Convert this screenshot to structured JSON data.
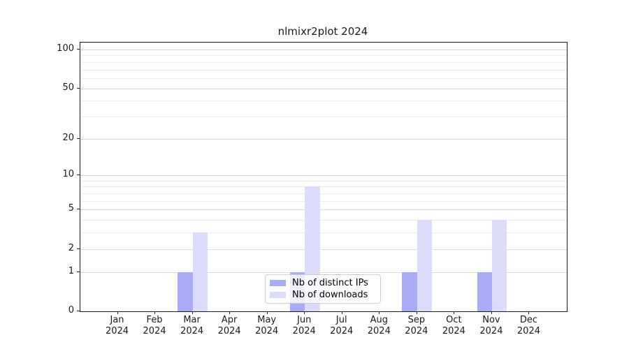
{
  "chart_data": {
    "type": "bar",
    "title": "nlmixr2plot 2024",
    "categories": [
      "Jan",
      "Feb",
      "Mar",
      "Apr",
      "May",
      "Jun",
      "Jul",
      "Aug",
      "Sep",
      "Oct",
      "Nov",
      "Dec"
    ],
    "year_label": "2024",
    "series": [
      {
        "name": "Nb of distinct IPs",
        "color": "#a8abf6",
        "values": [
          0,
          0,
          1,
          0,
          0,
          1,
          0,
          0,
          1,
          0,
          1,
          0
        ]
      },
      {
        "name": "Nb of downloads",
        "color": "#dadcfa",
        "values": [
          0,
          0,
          3,
          0,
          0,
          8,
          0,
          0,
          4,
          0,
          4,
          0
        ]
      }
    ],
    "yscale": "log1p",
    "ylim": [
      0,
      113
    ],
    "yticks": [
      0,
      1,
      2,
      5,
      10,
      20,
      50,
      100
    ],
    "minor_gridlines": [
      3,
      4,
      6,
      7,
      8,
      9,
      30,
      40,
      60,
      70,
      80,
      90
    ],
    "xlabel": "",
    "ylabel": "",
    "grid": "horizontal",
    "legend_position": "lower center"
  }
}
